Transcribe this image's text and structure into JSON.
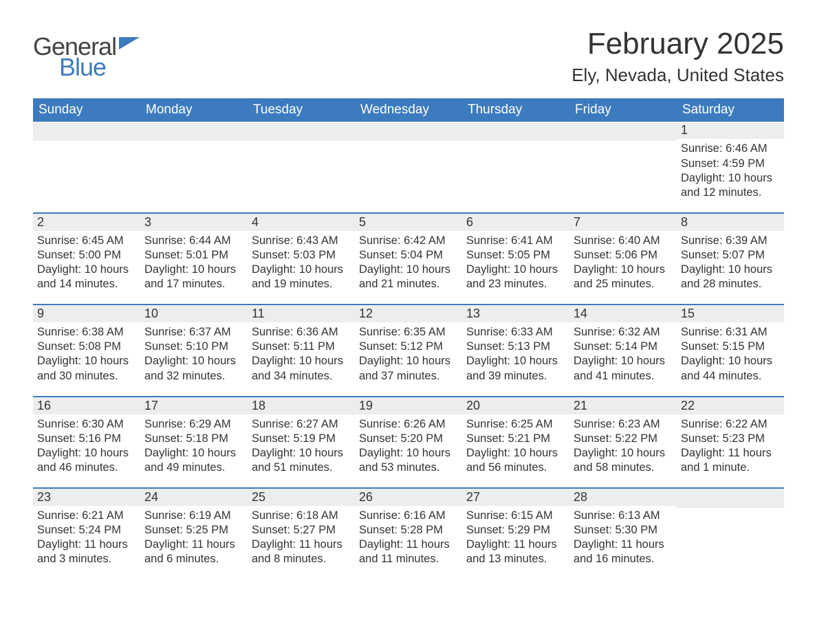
{
  "brand": {
    "general": "General",
    "blue": "Blue"
  },
  "title": "February 2025",
  "location": "Ely, Nevada, United States",
  "colors": {
    "header_bg": "#3d7bbf",
    "header_text": "#ffffff",
    "daynum_bg": "#ededed",
    "week_divider": "#3d7bbf",
    "text": "#333333",
    "page_bg": "#ffffff"
  },
  "dow": [
    "Sunday",
    "Monday",
    "Tuesday",
    "Wednesday",
    "Thursday",
    "Friday",
    "Saturday"
  ],
  "weeks": [
    [
      {
        "n": "",
        "sr": "",
        "ss": "",
        "dl1": "",
        "dl2": ""
      },
      {
        "n": "",
        "sr": "",
        "ss": "",
        "dl1": "",
        "dl2": ""
      },
      {
        "n": "",
        "sr": "",
        "ss": "",
        "dl1": "",
        "dl2": ""
      },
      {
        "n": "",
        "sr": "",
        "ss": "",
        "dl1": "",
        "dl2": ""
      },
      {
        "n": "",
        "sr": "",
        "ss": "",
        "dl1": "",
        "dl2": ""
      },
      {
        "n": "",
        "sr": "",
        "ss": "",
        "dl1": "",
        "dl2": ""
      },
      {
        "n": "1",
        "sr": "Sunrise: 6:46 AM",
        "ss": "Sunset: 4:59 PM",
        "dl1": "Daylight: 10 hours",
        "dl2": "and 12 minutes."
      }
    ],
    [
      {
        "n": "2",
        "sr": "Sunrise: 6:45 AM",
        "ss": "Sunset: 5:00 PM",
        "dl1": "Daylight: 10 hours",
        "dl2": "and 14 minutes."
      },
      {
        "n": "3",
        "sr": "Sunrise: 6:44 AM",
        "ss": "Sunset: 5:01 PM",
        "dl1": "Daylight: 10 hours",
        "dl2": "and 17 minutes."
      },
      {
        "n": "4",
        "sr": "Sunrise: 6:43 AM",
        "ss": "Sunset: 5:03 PM",
        "dl1": "Daylight: 10 hours",
        "dl2": "and 19 minutes."
      },
      {
        "n": "5",
        "sr": "Sunrise: 6:42 AM",
        "ss": "Sunset: 5:04 PM",
        "dl1": "Daylight: 10 hours",
        "dl2": "and 21 minutes."
      },
      {
        "n": "6",
        "sr": "Sunrise: 6:41 AM",
        "ss": "Sunset: 5:05 PM",
        "dl1": "Daylight: 10 hours",
        "dl2": "and 23 minutes."
      },
      {
        "n": "7",
        "sr": "Sunrise: 6:40 AM",
        "ss": "Sunset: 5:06 PM",
        "dl1": "Daylight: 10 hours",
        "dl2": "and 25 minutes."
      },
      {
        "n": "8",
        "sr": "Sunrise: 6:39 AM",
        "ss": "Sunset: 5:07 PM",
        "dl1": "Daylight: 10 hours",
        "dl2": "and 28 minutes."
      }
    ],
    [
      {
        "n": "9",
        "sr": "Sunrise: 6:38 AM",
        "ss": "Sunset: 5:08 PM",
        "dl1": "Daylight: 10 hours",
        "dl2": "and 30 minutes."
      },
      {
        "n": "10",
        "sr": "Sunrise: 6:37 AM",
        "ss": "Sunset: 5:10 PM",
        "dl1": "Daylight: 10 hours",
        "dl2": "and 32 minutes."
      },
      {
        "n": "11",
        "sr": "Sunrise: 6:36 AM",
        "ss": "Sunset: 5:11 PM",
        "dl1": "Daylight: 10 hours",
        "dl2": "and 34 minutes."
      },
      {
        "n": "12",
        "sr": "Sunrise: 6:35 AM",
        "ss": "Sunset: 5:12 PM",
        "dl1": "Daylight: 10 hours",
        "dl2": "and 37 minutes."
      },
      {
        "n": "13",
        "sr": "Sunrise: 6:33 AM",
        "ss": "Sunset: 5:13 PM",
        "dl1": "Daylight: 10 hours",
        "dl2": "and 39 minutes."
      },
      {
        "n": "14",
        "sr": "Sunrise: 6:32 AM",
        "ss": "Sunset: 5:14 PM",
        "dl1": "Daylight: 10 hours",
        "dl2": "and 41 minutes."
      },
      {
        "n": "15",
        "sr": "Sunrise: 6:31 AM",
        "ss": "Sunset: 5:15 PM",
        "dl1": "Daylight: 10 hours",
        "dl2": "and 44 minutes."
      }
    ],
    [
      {
        "n": "16",
        "sr": "Sunrise: 6:30 AM",
        "ss": "Sunset: 5:16 PM",
        "dl1": "Daylight: 10 hours",
        "dl2": "and 46 minutes."
      },
      {
        "n": "17",
        "sr": "Sunrise: 6:29 AM",
        "ss": "Sunset: 5:18 PM",
        "dl1": "Daylight: 10 hours",
        "dl2": "and 49 minutes."
      },
      {
        "n": "18",
        "sr": "Sunrise: 6:27 AM",
        "ss": "Sunset: 5:19 PM",
        "dl1": "Daylight: 10 hours",
        "dl2": "and 51 minutes."
      },
      {
        "n": "19",
        "sr": "Sunrise: 6:26 AM",
        "ss": "Sunset: 5:20 PM",
        "dl1": "Daylight: 10 hours",
        "dl2": "and 53 minutes."
      },
      {
        "n": "20",
        "sr": "Sunrise: 6:25 AM",
        "ss": "Sunset: 5:21 PM",
        "dl1": "Daylight: 10 hours",
        "dl2": "and 56 minutes."
      },
      {
        "n": "21",
        "sr": "Sunrise: 6:23 AM",
        "ss": "Sunset: 5:22 PM",
        "dl1": "Daylight: 10 hours",
        "dl2": "and 58 minutes."
      },
      {
        "n": "22",
        "sr": "Sunrise: 6:22 AM",
        "ss": "Sunset: 5:23 PM",
        "dl1": "Daylight: 11 hours",
        "dl2": "and 1 minute."
      }
    ],
    [
      {
        "n": "23",
        "sr": "Sunrise: 6:21 AM",
        "ss": "Sunset: 5:24 PM",
        "dl1": "Daylight: 11 hours",
        "dl2": "and 3 minutes."
      },
      {
        "n": "24",
        "sr": "Sunrise: 6:19 AM",
        "ss": "Sunset: 5:25 PM",
        "dl1": "Daylight: 11 hours",
        "dl2": "and 6 minutes."
      },
      {
        "n": "25",
        "sr": "Sunrise: 6:18 AM",
        "ss": "Sunset: 5:27 PM",
        "dl1": "Daylight: 11 hours",
        "dl2": "and 8 minutes."
      },
      {
        "n": "26",
        "sr": "Sunrise: 6:16 AM",
        "ss": "Sunset: 5:28 PM",
        "dl1": "Daylight: 11 hours",
        "dl2": "and 11 minutes."
      },
      {
        "n": "27",
        "sr": "Sunrise: 6:15 AM",
        "ss": "Sunset: 5:29 PM",
        "dl1": "Daylight: 11 hours",
        "dl2": "and 13 minutes."
      },
      {
        "n": "28",
        "sr": "Sunrise: 6:13 AM",
        "ss": "Sunset: 5:30 PM",
        "dl1": "Daylight: 11 hours",
        "dl2": "and 16 minutes."
      },
      {
        "n": "",
        "sr": "",
        "ss": "",
        "dl1": "",
        "dl2": ""
      }
    ]
  ]
}
